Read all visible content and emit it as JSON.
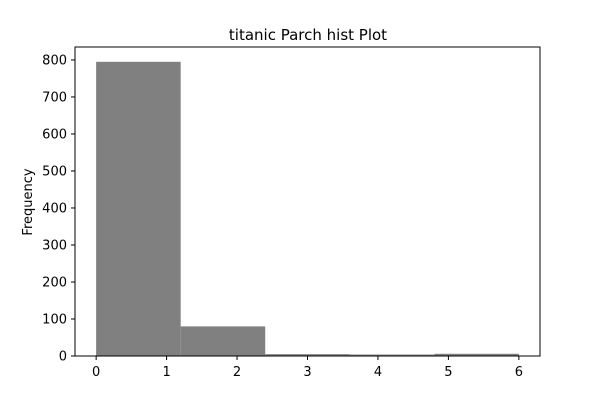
{
  "chart_data": {
    "type": "bar",
    "title": "titanic Parch hist Plot",
    "xlabel": "",
    "ylabel": "Frequency",
    "bins": [
      {
        "start": 0.0,
        "end": 1.2,
        "value": 795
      },
      {
        "start": 1.2,
        "end": 2.4,
        "value": 80
      },
      {
        "start": 2.4,
        "end": 3.6,
        "value": 5
      },
      {
        "start": 3.6,
        "end": 4.8,
        "value": 4
      },
      {
        "start": 4.8,
        "end": 6.0,
        "value": 6
      }
    ],
    "xlim": [
      -0.3,
      6.3
    ],
    "ylim": [
      0,
      835
    ],
    "xticks": [
      0,
      1,
      2,
      3,
      4,
      5,
      6
    ],
    "yticks": [
      0,
      100,
      200,
      300,
      400,
      500,
      600,
      700,
      800
    ],
    "grid": false,
    "bar_color": "#808080"
  }
}
